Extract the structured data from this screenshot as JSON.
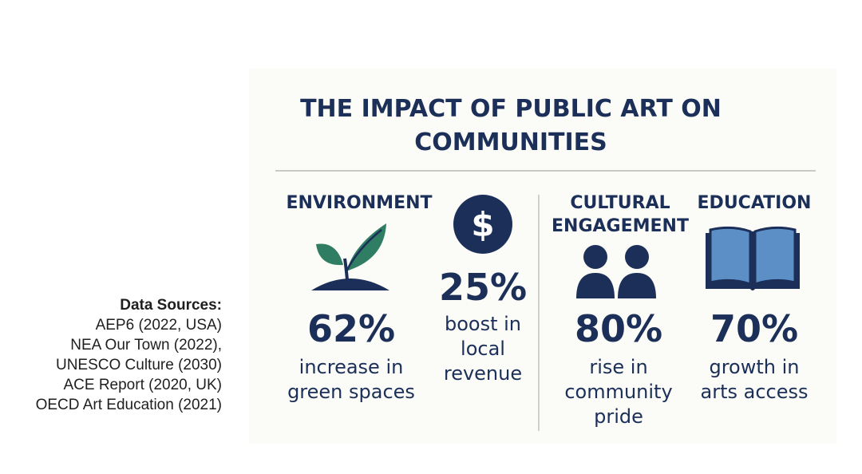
{
  "sources": {
    "title": "Data Sources:",
    "lines": [
      "AEP6 (2022, USA)",
      "NEA Our Town (2022),",
      "UNESCO Culture (2030)",
      "ACE Report (2020, UK)",
      "OECD Art Education (2021)"
    ]
  },
  "infographic": {
    "title_line1": "THE IMPACT OF PUBLIC ART ON",
    "title_line2": "COMMUNITIES",
    "colors": {
      "navy": "#1b2f58",
      "green": "#2f7d62",
      "book_blue": "#5b8fc6"
    },
    "sections": [
      {
        "heading": "ENVIRONMENT",
        "icon": "sprout-icon",
        "stat": "62%",
        "desc_lines": [
          "increase in",
          "green spaces"
        ]
      },
      {
        "heading": "",
        "icon": "dollar-coin-icon",
        "stat": "25%",
        "desc_lines": [
          "boost in",
          "local",
          "revenue"
        ]
      },
      {
        "heading_lines": [
          "CULTURAL",
          "ENGAGEMENT"
        ],
        "icon": "people-icon",
        "stat": "80%",
        "desc_lines": [
          "rise in",
          "community",
          "pride"
        ]
      },
      {
        "heading": "EDUCATION",
        "icon": "open-book-icon",
        "stat": "70%",
        "desc_lines": [
          "growth in",
          "arts access"
        ]
      }
    ]
  }
}
